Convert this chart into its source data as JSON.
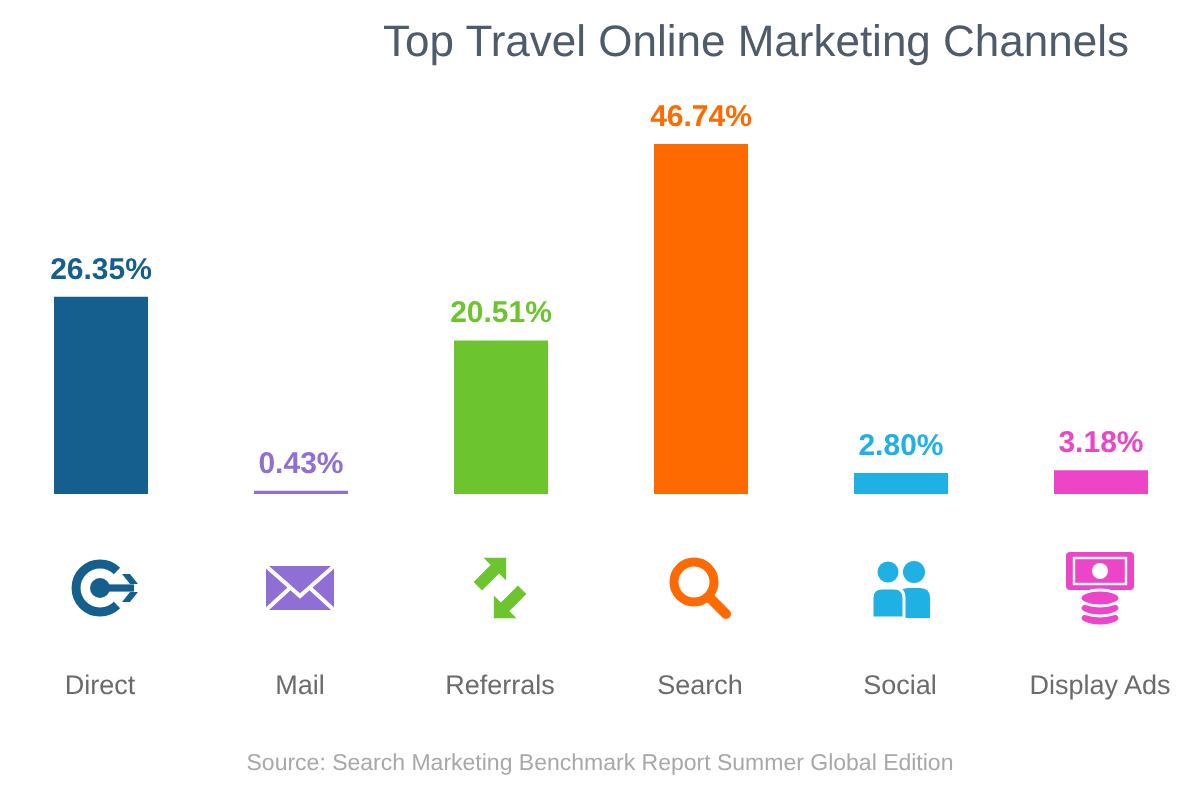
{
  "chart_data": {
    "type": "bar",
    "title": "Top Travel Online Marketing Channels",
    "categories": [
      "Direct",
      "Mail",
      "Referrals",
      "Search",
      "Social",
      "Display Ads"
    ],
    "values": [
      26.35,
      0.43,
      20.51,
      46.74,
      2.8,
      3.18
    ],
    "colors": [
      "#145f8e",
      "#8f6fd3",
      "#6cc52e",
      "#ff6a00",
      "#1fb0e4",
      "#ec45c8"
    ],
    "value_labels": [
      "26.35%",
      "0.43%",
      "20.51%",
      "46.74%",
      "2.80%",
      "3.18%"
    ],
    "tick_labels": "x",
    "annotations": [
      "Source: Search Marketing Benchmark Report Summer Global Edition"
    ]
  }
}
